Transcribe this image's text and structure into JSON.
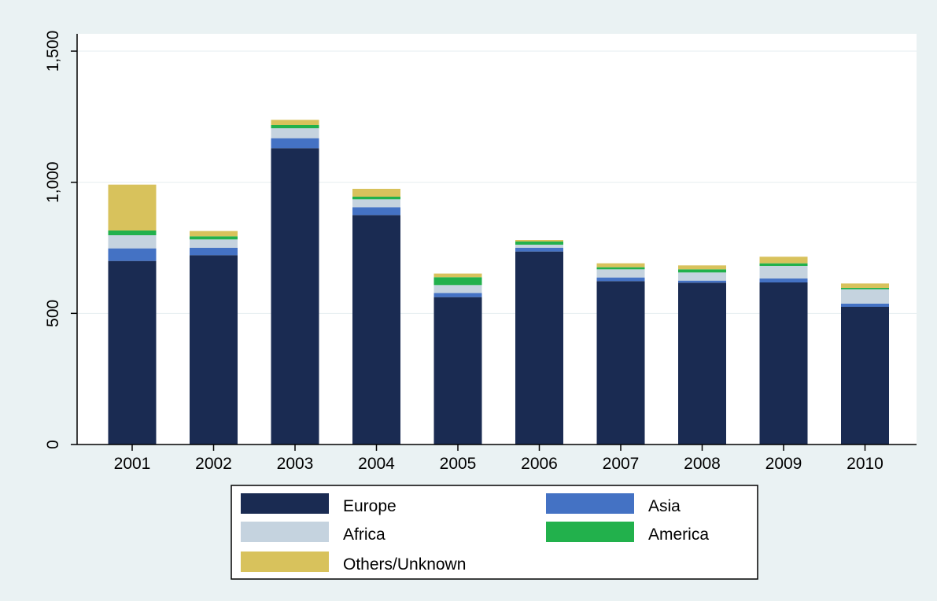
{
  "chart_data": {
    "type": "bar",
    "stacked": true,
    "categories": [
      "2001",
      "2002",
      "2003",
      "2004",
      "2005",
      "2006",
      "2007",
      "2008",
      "2009",
      "2010"
    ],
    "series": [
      {
        "name": "Europe",
        "color": "#1a2b52",
        "values": [
          700,
          722,
          1130,
          875,
          562,
          736,
          623,
          617,
          618,
          525
        ]
      },
      {
        "name": "Asia",
        "color": "#4472c4",
        "values": [
          48,
          28,
          38,
          30,
          16,
          14,
          14,
          8,
          15,
          12
        ]
      },
      {
        "name": "Africa",
        "color": "#c5d3df",
        "values": [
          50,
          32,
          38,
          30,
          30,
          12,
          31,
          31,
          48,
          55
        ]
      },
      {
        "name": "America",
        "color": "#22b14c",
        "values": [
          18,
          12,
          12,
          10,
          30,
          12,
          8,
          12,
          10,
          5
        ]
      },
      {
        "name": "Others/Unknown",
        "color": "#d8c25c",
        "values": [
          175,
          20,
          20,
          30,
          14,
          6,
          15,
          15,
          25,
          17
        ]
      }
    ],
    "ylim": [
      0,
      1500
    ],
    "yticks": [
      0,
      500,
      1000,
      1500
    ],
    "ytick_labels": [
      "0",
      "500",
      "1,000",
      "1,500"
    ],
    "grid": true,
    "legend_position": "bottom",
    "background_color": "#eaf2f3",
    "plot_background_color": "#ffffff"
  }
}
